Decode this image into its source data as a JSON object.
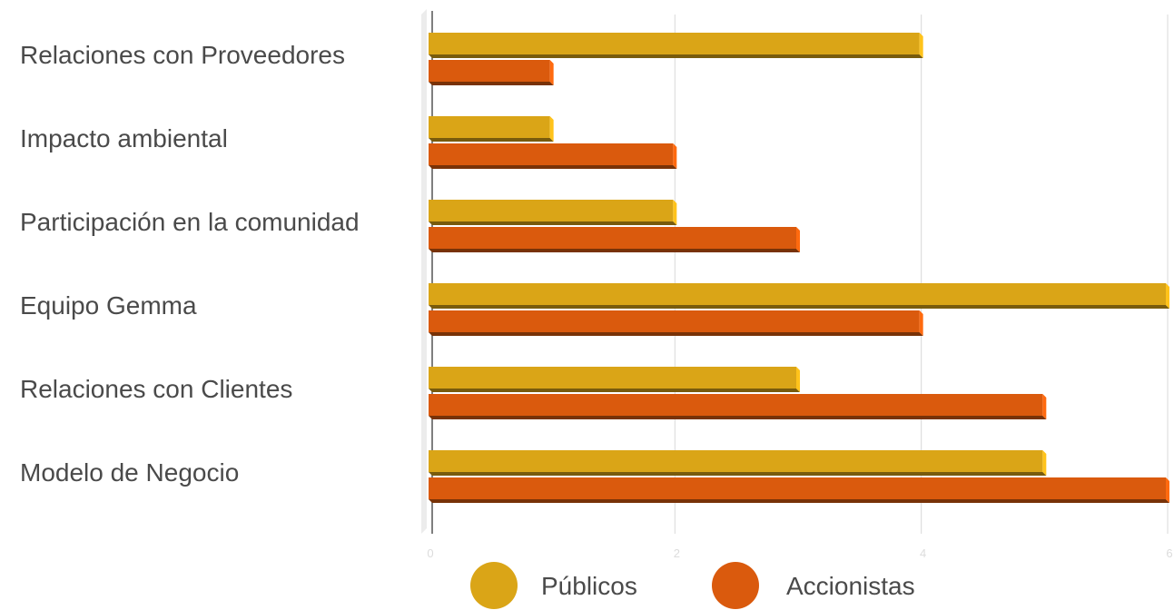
{
  "chart_data": {
    "type": "bar",
    "orientation": "horizontal",
    "categories": [
      "Relaciones con Proveedores",
      "Impacto ambiental",
      "Participación en la comunidad",
      "Equipo Gemma",
      "Relaciones con Clientes",
      "Modelo de Negocio"
    ],
    "series": [
      {
        "name": "Públicos",
        "color": "#DAA517",
        "values": [
          4,
          1,
          2,
          6,
          3,
          5
        ]
      },
      {
        "name": "Accionistas",
        "color": "#DA5A0D",
        "values": [
          1,
          2,
          3,
          4,
          5,
          6
        ]
      }
    ],
    "xlim": [
      0,
      6
    ],
    "x_ticks": [
      "0",
      "2",
      "4",
      "6"
    ],
    "grid": true,
    "legend_position": "bottom",
    "title": "",
    "xlabel": "",
    "ylabel": ""
  }
}
